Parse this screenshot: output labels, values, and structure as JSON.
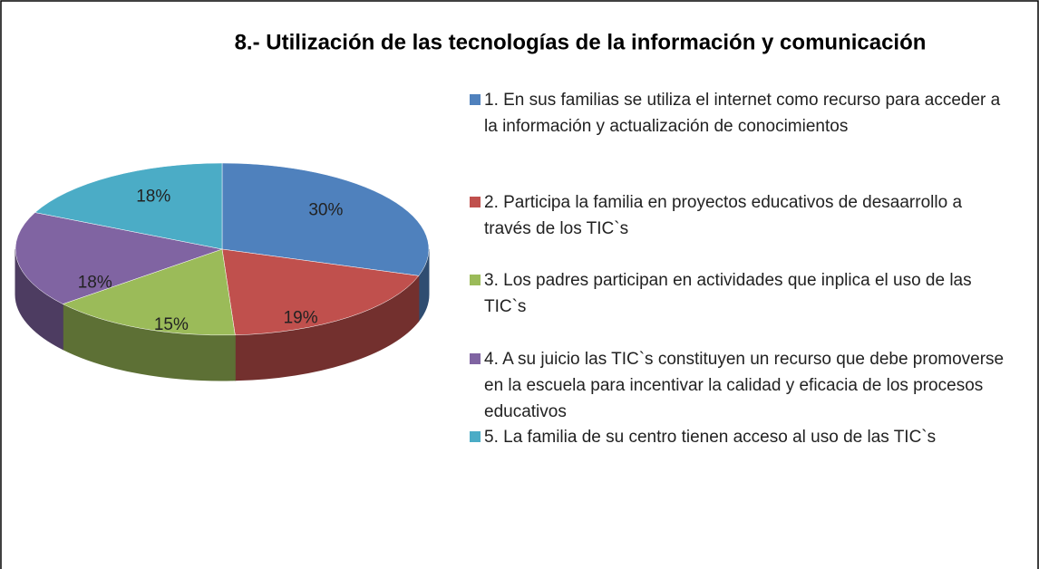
{
  "chart_data": {
    "type": "pie",
    "title": "8.- Utilización de las tecnologías de la información y comunicación",
    "categories": [
      "1. En sus familias se utiliza el internet como recurso para acceder a la información y actualización de conocimientos",
      "2. Participa la familia en proyectos educativos de desaarrollo a través de los TIC`s",
      "3. Los padres participan en actividades que inplica el uso de las TIC`s",
      "4. A su juicio  las TIC`s constituyen un recurso que debe promoverse en la escuela para incentivar la calidad y eficacia de los procesos educativos",
      "5. La familia de su centro tienen acceso al uso de las TIC`s"
    ],
    "values": [
      30,
      19,
      15,
      18,
      18
    ],
    "value_labels": [
      "30%",
      "19%",
      "15%",
      "18%",
      "18%"
    ],
    "colors": [
      "#4f81bd",
      "#c0504d",
      "#9bbb59",
      "#8064a2",
      "#4bacc6"
    ],
    "legend": "right"
  }
}
